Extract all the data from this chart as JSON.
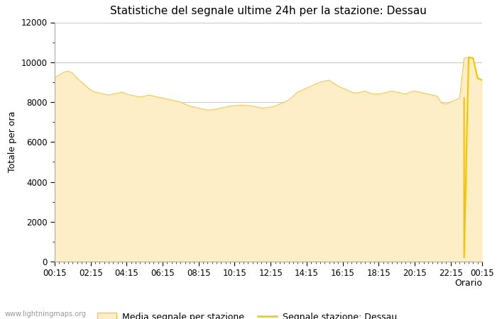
{
  "title": "Statistiche del segnale ultime 24h per la stazione: Dessau",
  "xlabel": "Orario",
  "ylabel": "Totale per ora",
  "watermark": "www.lightningmaps.org",
  "ylim": [
    0,
    12000
  ],
  "yticks": [
    0,
    2000,
    4000,
    6000,
    8000,
    10000,
    12000
  ],
  "x_labels": [
    "00:15",
    "02:15",
    "04:15",
    "06:15",
    "08:15",
    "10:15",
    "12:15",
    "14:15",
    "16:15",
    "18:15",
    "20:15",
    "22:15",
    "00:15"
  ],
  "fill_color": "#fdeec8",
  "fill_edge_color": "#f5c842",
  "line_color": "#f5c400",
  "legend_fill_label": "Media segnale per stazione",
  "legend_line_label": "Segnale stazione: Dessau",
  "background_color": "#ffffff",
  "grid_color": "#cccccc",
  "media_x": [
    0,
    1,
    2,
    3,
    4,
    5,
    6,
    7,
    8,
    9,
    10,
    11,
    12,
    13,
    14,
    15,
    16,
    17,
    18,
    19,
    20,
    21,
    22,
    23,
    24,
    25,
    26,
    27,
    28,
    29,
    30,
    31,
    32,
    33,
    34,
    35,
    36,
    37,
    38,
    39,
    40,
    41,
    42,
    43,
    44,
    45,
    46,
    47,
    48,
    49,
    50,
    51,
    52,
    53,
    54,
    55,
    56,
    57,
    58,
    59,
    60,
    61,
    62,
    63,
    64,
    65,
    66,
    67,
    68,
    69,
    70,
    71,
    72,
    73,
    74,
    75,
    76,
    77,
    78,
    79,
    80,
    81,
    82,
    83,
    84,
    85,
    86,
    87,
    88,
    89,
    90,
    91,
    92,
    93,
    94,
    95
  ],
  "media_y": [
    9250,
    9350,
    9500,
    9550,
    9450,
    9200,
    9000,
    8800,
    8600,
    8500,
    8450,
    8400,
    8350,
    8400,
    8450,
    8500,
    8400,
    8350,
    8300,
    8250,
    8300,
    8350,
    8300,
    8250,
    8200,
    8150,
    8100,
    8050,
    8000,
    7900,
    7800,
    7750,
    7700,
    7650,
    7600,
    7620,
    7650,
    7700,
    7750,
    7800,
    7820,
    7830,
    7850,
    7820,
    7800,
    7750,
    7700,
    7720,
    7750,
    7800,
    7900,
    8000,
    8100,
    8300,
    8500,
    8600,
    8700,
    8800,
    8900,
    9000,
    9050,
    9100,
    8950,
    8800,
    8700,
    8600,
    8500,
    8450,
    8500,
    8550,
    8450,
    8400,
    8400,
    8450,
    8500,
    8550,
    8500,
    8450,
    8400,
    8500,
    8550,
    8500,
    8450,
    8400,
    8350,
    8300,
    7950,
    7900,
    8000,
    8100,
    8200,
    10200,
    10250,
    10200,
    9200,
    9100
  ],
  "station_x": [
    91,
    91,
    92,
    93,
    94,
    95
  ],
  "station_y": [
    8200,
    200,
    10250,
    10200,
    9200,
    9100
  ],
  "x_tick_positions": [
    0,
    8,
    16,
    24,
    32,
    40,
    48,
    56,
    64,
    72,
    80,
    88,
    95
  ],
  "title_fontsize": 11,
  "tick_fontsize": 8.5,
  "ylabel_fontsize": 9,
  "legend_fontsize": 9
}
